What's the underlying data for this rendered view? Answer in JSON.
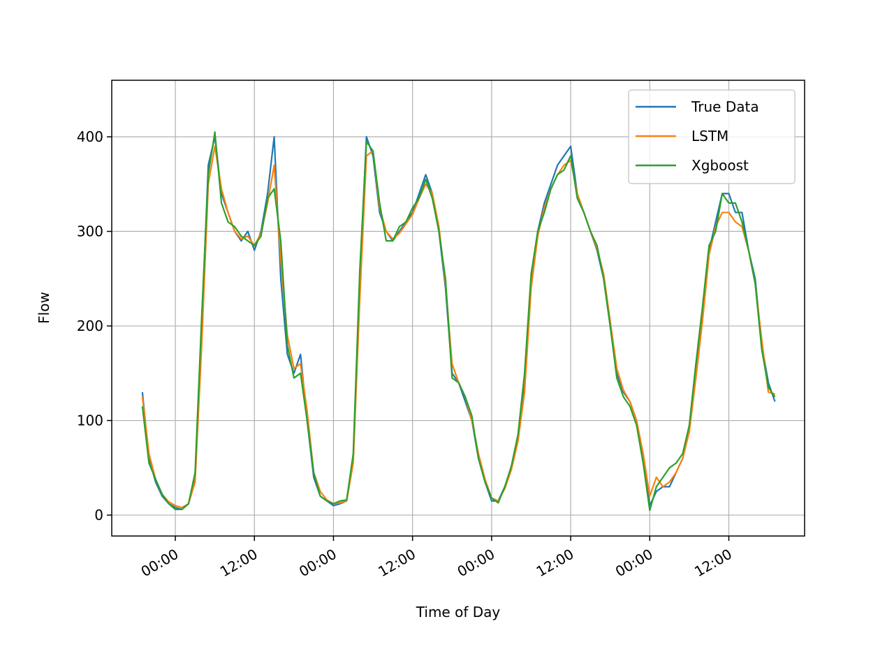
{
  "chart_data": {
    "type": "line",
    "xlabel": "Time of Day",
    "ylabel": "Flow",
    "x": [
      -5,
      -4,
      -3,
      -2,
      -1,
      0,
      1,
      2,
      3,
      4,
      5,
      6,
      7,
      8,
      9,
      10,
      11,
      12,
      13,
      14,
      15,
      16,
      17,
      18,
      19,
      20,
      21,
      22,
      23,
      24,
      25,
      26,
      27,
      28,
      29,
      30,
      31,
      32,
      33,
      34,
      35,
      36,
      37,
      38,
      39,
      40,
      41,
      42,
      43,
      44,
      45,
      46,
      47,
      48,
      49,
      50,
      51,
      52,
      53,
      54,
      55,
      56,
      57,
      58,
      59,
      60,
      61,
      62,
      63,
      64,
      65,
      66,
      67,
      68,
      69,
      70,
      71,
      72,
      73,
      74,
      75,
      76,
      77,
      78,
      79,
      80,
      81,
      82,
      83,
      84,
      85,
      86,
      87,
      88,
      89,
      90,
      91
    ],
    "series": [
      {
        "name": "True Data",
        "color": "#1f77b4",
        "values": [
          130,
          60,
          35,
          20,
          12,
          8,
          6,
          12,
          40,
          200,
          370,
          400,
          340,
          320,
          300,
          290,
          300,
          280,
          300,
          340,
          400,
          250,
          170,
          150,
          170,
          100,
          40,
          20,
          15,
          10,
          12,
          15,
          60,
          250,
          400,
          380,
          320,
          300,
          290,
          300,
          310,
          320,
          340,
          360,
          340,
          300,
          240,
          150,
          140,
          120,
          100,
          60,
          35,
          15,
          15,
          30,
          50,
          80,
          140,
          250,
          300,
          330,
          350,
          370,
          380,
          390,
          340,
          320,
          300,
          280,
          250,
          200,
          150,
          130,
          120,
          100,
          60,
          10,
          25,
          30,
          30,
          45,
          60,
          90,
          150,
          210,
          280,
          310,
          340,
          340,
          320,
          320,
          280,
          250,
          180,
          140,
          120
        ]
      },
      {
        "name": "LSTM",
        "color": "#ff7f0e",
        "values": [
          125,
          65,
          38,
          22,
          14,
          10,
          8,
          12,
          35,
          180,
          350,
          390,
          345,
          320,
          300,
          292,
          295,
          285,
          298,
          330,
          370,
          270,
          190,
          155,
          160,
          110,
          45,
          25,
          16,
          12,
          13,
          15,
          55,
          230,
          380,
          385,
          325,
          300,
          292,
          298,
          308,
          318,
          335,
          350,
          340,
          305,
          245,
          160,
          140,
          125,
          100,
          65,
          38,
          18,
          15,
          28,
          48,
          78,
          130,
          240,
          295,
          325,
          345,
          360,
          370,
          375,
          340,
          320,
          300,
          282,
          255,
          205,
          155,
          132,
          120,
          100,
          65,
          20,
          40,
          30,
          35,
          45,
          60,
          88,
          145,
          205,
          275,
          305,
          320,
          320,
          310,
          305,
          280,
          245,
          185,
          130,
          128
        ]
      },
      {
        "name": "Xgboost",
        "color": "#2ca02c",
        "values": [
          115,
          55,
          38,
          22,
          12,
          6,
          6,
          12,
          45,
          210,
          360,
          405,
          330,
          310,
          305,
          295,
          290,
          285,
          295,
          335,
          345,
          290,
          180,
          145,
          150,
          100,
          45,
          20,
          15,
          12,
          15,
          16,
          65,
          260,
          395,
          385,
          330,
          290,
          290,
          305,
          310,
          325,
          335,
          355,
          335,
          300,
          250,
          145,
          140,
          125,
          105,
          60,
          35,
          18,
          13,
          30,
          52,
          85,
          150,
          255,
          300,
          320,
          345,
          360,
          365,
          380,
          335,
          320,
          300,
          285,
          250,
          200,
          145,
          125,
          115,
          95,
          55,
          5,
          30,
          40,
          50,
          55,
          65,
          95,
          160,
          220,
          285,
          300,
          340,
          330,
          330,
          310,
          280,
          245,
          175,
          135,
          125
        ]
      }
    ],
    "xlim": [
      -9.65,
      95.5
    ],
    "xticks": [
      {
        "value": 0,
        "label": "00:00"
      },
      {
        "value": 12,
        "label": "12:00"
      },
      {
        "value": 24,
        "label": "00:00"
      },
      {
        "value": 36,
        "label": "12:00"
      },
      {
        "value": 48,
        "label": "00:00"
      },
      {
        "value": 60,
        "label": "12:00"
      },
      {
        "value": 72,
        "label": "00:00"
      },
      {
        "value": 84,
        "label": "12:00"
      }
    ],
    "ylim": [
      -22.1,
      459.8
    ],
    "yticks": [
      0,
      100,
      200,
      300,
      400
    ],
    "grid": true,
    "legend": "upper right"
  }
}
